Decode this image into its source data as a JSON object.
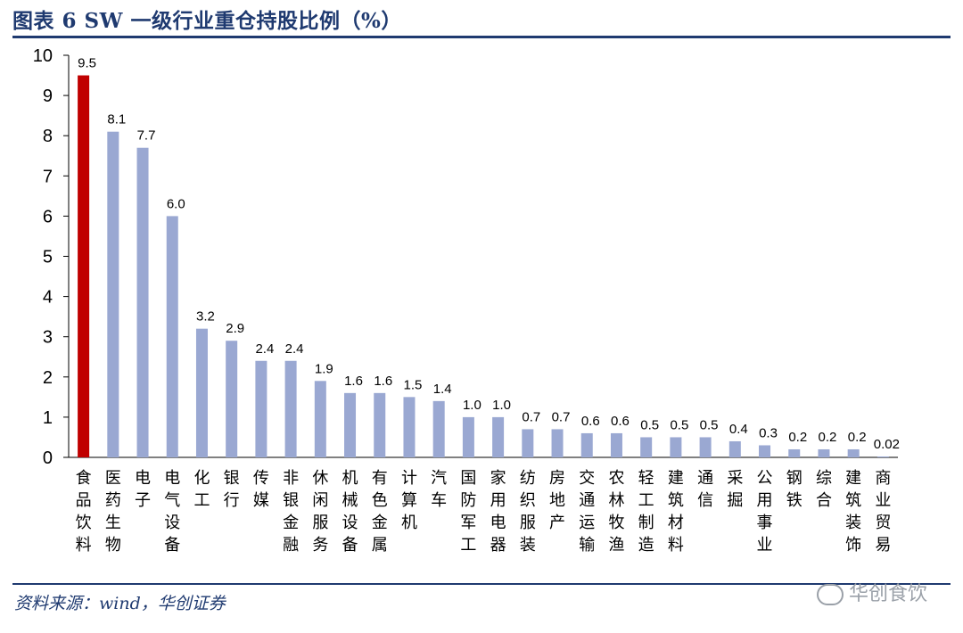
{
  "header": {
    "title": "图表 6   SW 一级行业重仓持股比例（%）"
  },
  "footer": {
    "source": "资料来源：wind，华创证券",
    "watermark": "华创食饮"
  },
  "colors": {
    "highlight": "#c00000",
    "bar": "#9aa8d2",
    "axis": "#000000",
    "brand": "#1f3a70"
  },
  "chart_data": {
    "type": "bar",
    "title": "SW 一级行业重仓持股比例（%）",
    "xlabel": "",
    "ylabel": "",
    "ylim": [
      0,
      10
    ],
    "yticks": [
      0,
      1,
      2,
      3,
      4,
      5,
      6,
      7,
      8,
      9,
      10
    ],
    "categories": [
      "食品饮料",
      "医药生物",
      "电子",
      "电气设备",
      "化工",
      "银行",
      "传媒",
      "非银金融",
      "休闲服务",
      "机械设备",
      "有色金属",
      "计算机",
      "汽车",
      "国防军工",
      "家用电器",
      "纺织服装",
      "房地产",
      "交通运输",
      "农林牧渔",
      "轻工制造",
      "建筑材料",
      "通信",
      "采掘",
      "公用事业",
      "钢铁",
      "综合",
      "建筑装饰",
      "商业贸易"
    ],
    "values": [
      9.5,
      8.1,
      7.7,
      6.0,
      3.2,
      2.9,
      2.4,
      2.4,
      1.9,
      1.6,
      1.6,
      1.5,
      1.4,
      1.0,
      1.0,
      0.7,
      0.7,
      0.6,
      0.6,
      0.5,
      0.5,
      0.5,
      0.4,
      0.3,
      0.2,
      0.2,
      0.2,
      0.02
    ],
    "labels": [
      "9.5",
      "8.1",
      "7.7",
      "6.0",
      "3.2",
      "2.9",
      "2.4",
      "2.4",
      "1.9",
      "1.6",
      "1.6",
      "1.5",
      "1.4",
      "1.0",
      "1.0",
      "0.7",
      "0.7",
      "0.6",
      "0.6",
      "0.5",
      "0.5",
      "0.5",
      "0.4",
      "0.3",
      "0.2",
      "0.2",
      "0.2",
      "0.02"
    ],
    "highlight_index": 0,
    "grid": false,
    "legend": "none"
  }
}
